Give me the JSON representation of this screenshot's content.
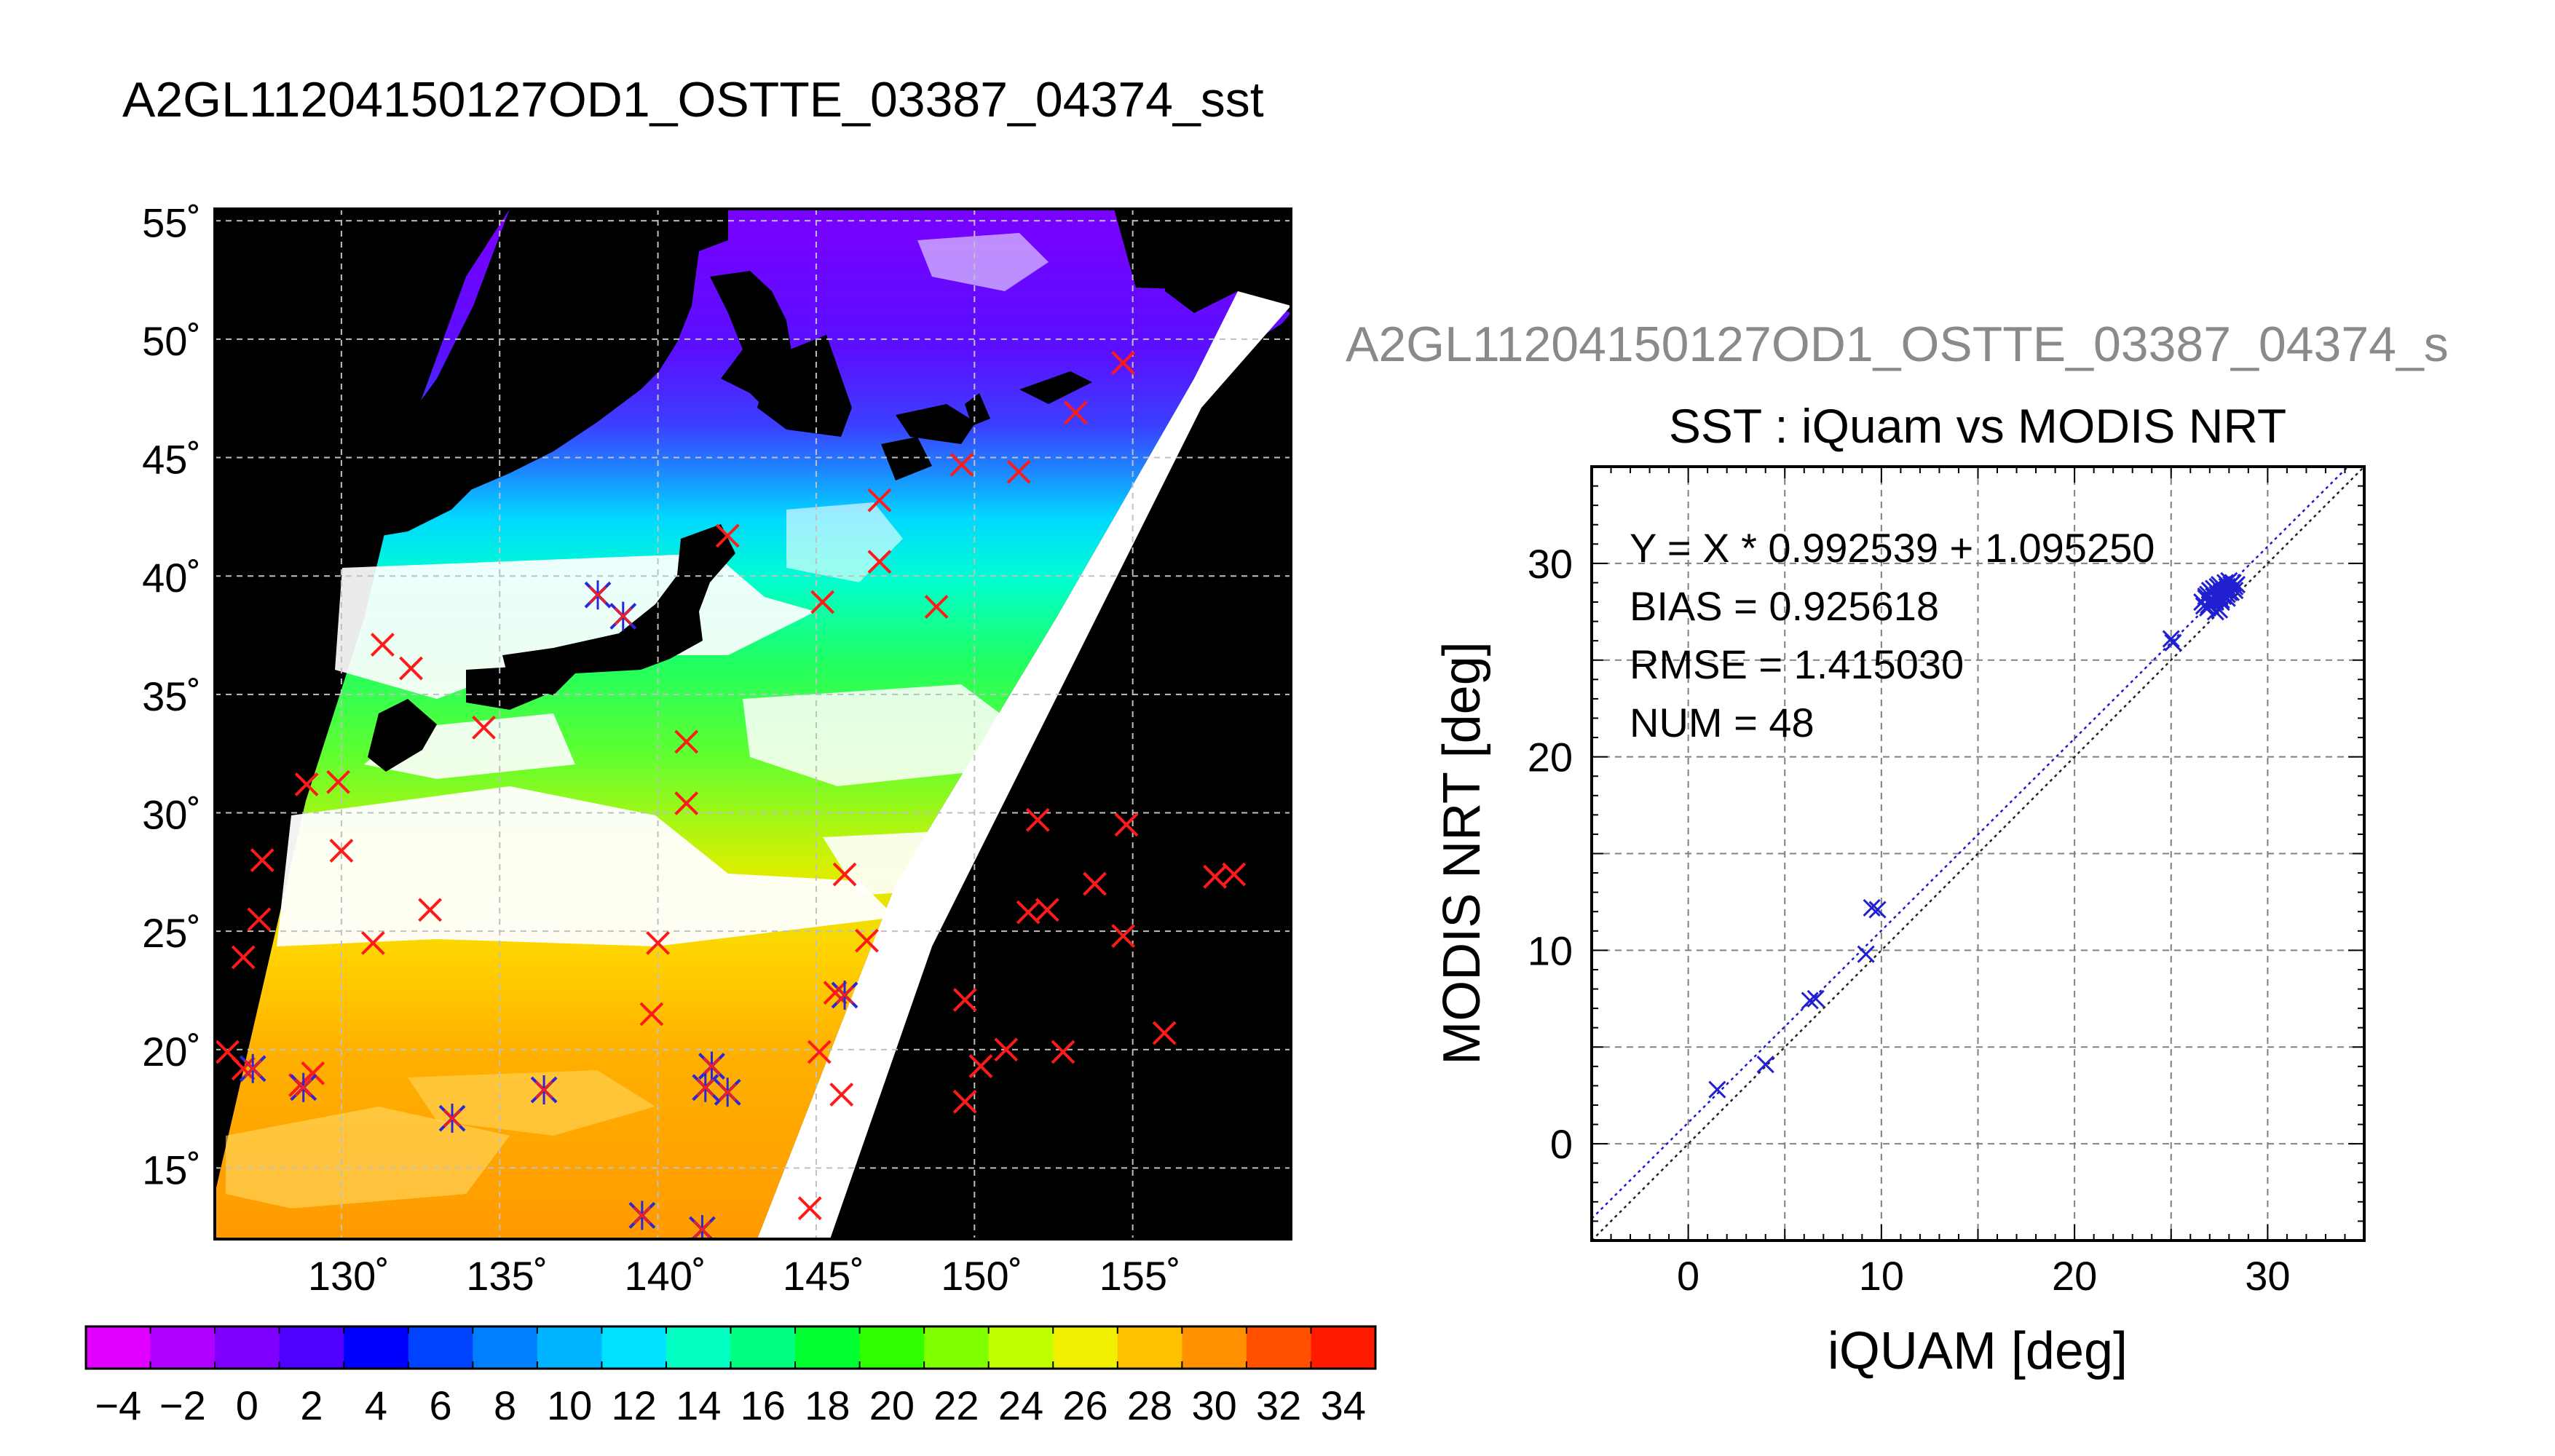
{
  "page_title": "A2GL11204150127OD1_OSTTE_03387_04374_sst",
  "scatter_title_gray": "A2GL11204150127OD1_OSTTE_03387_04374_s",
  "map": {
    "lat_labels": [
      "55˚",
      "50˚",
      "45˚",
      "40˚",
      "35˚",
      "30˚",
      "25˚",
      "20˚",
      "15˚"
    ],
    "lat_values": [
      55,
      50,
      45,
      40,
      35,
      30,
      25,
      20,
      15
    ],
    "lon_labels": [
      "130˚",
      "135˚",
      "140˚",
      "145˚",
      "150˚",
      "155˚"
    ],
    "lon_values": [
      130,
      135,
      140,
      145,
      150,
      155
    ],
    "lon_range": [
      126,
      160
    ],
    "lat_range": [
      12,
      55.5
    ],
    "colors": {
      "background": "#000000",
      "no_data": "#ffffff",
      "grid": "#c0c0c0",
      "match_red": "#ff1a1a",
      "match_blue": "#2828d8"
    },
    "red_matchups": [
      [
        157.6,
        27.3
      ],
      [
        158.2,
        27.4
      ],
      [
        156.0,
        20.7
      ],
      [
        154.8,
        29.5
      ],
      [
        154.7,
        24.8
      ],
      [
        153.8,
        27.0
      ],
      [
        152.8,
        19.9
      ],
      [
        152.3,
        25.9
      ],
      [
        151.7,
        25.8
      ],
      [
        152.0,
        29.7
      ],
      [
        151.0,
        20.0
      ],
      [
        150.2,
        19.3
      ],
      [
        149.7,
        22.1
      ],
      [
        149.7,
        17.8
      ],
      [
        148.8,
        38.7
      ],
      [
        147.0,
        40.6
      ],
      [
        147.0,
        43.2
      ],
      [
        149.6,
        44.7
      ],
      [
        151.4,
        44.4
      ],
      [
        153.2,
        46.9
      ],
      [
        154.7,
        49.0
      ],
      [
        146.6,
        24.6
      ],
      [
        145.9,
        27.4
      ],
      [
        145.8,
        18.1
      ],
      [
        145.6,
        22.4
      ],
      [
        145.1,
        19.9
      ],
      [
        144.8,
        13.3
      ],
      [
        145.2,
        38.9
      ],
      [
        142.2,
        41.7
      ],
      [
        140.9,
        33.0
      ],
      [
        140.9,
        30.4
      ],
      [
        140.0,
        24.5
      ],
      [
        139.8,
        21.5
      ],
      [
        134.5,
        33.6
      ],
      [
        132.8,
        25.9
      ],
      [
        132.2,
        36.1
      ],
      [
        131.3,
        37.1
      ],
      [
        131.0,
        24.5
      ],
      [
        130.0,
        28.4
      ],
      [
        129.9,
        31.3
      ],
      [
        128.9,
        31.2
      ],
      [
        129.1,
        19.0
      ],
      [
        127.5,
        28.0
      ],
      [
        127.4,
        25.5
      ],
      [
        126.9,
        23.9
      ],
      [
        126.4,
        19.9
      ],
      [
        126.9,
        19.2
      ],
      [
        128.7,
        18.5
      ]
    ],
    "blue_matchups": [
      [
        138.1,
        39.2
      ],
      [
        138.9,
        38.3
      ],
      [
        141.7,
        19.3
      ],
      [
        141.5,
        18.4
      ],
      [
        142.2,
        18.2
      ],
      [
        136.4,
        18.3
      ],
      [
        133.5,
        17.1
      ],
      [
        139.5,
        13.0
      ],
      [
        141.4,
        12.4
      ],
      [
        145.9,
        22.3
      ],
      [
        128.8,
        18.4
      ],
      [
        127.2,
        19.2
      ]
    ]
  },
  "colorbar": {
    "tick_labels": [
      "−4",
      "−2",
      "0",
      "2",
      "4",
      "6",
      "8",
      "10",
      "12",
      "14",
      "16",
      "18",
      "20",
      "22",
      "24",
      "26",
      "28",
      "30",
      "32",
      "34"
    ],
    "range": [
      -4.0,
      36.0
    ],
    "colors": [
      "#e000ff",
      "#b000ff",
      "#8000ff",
      "#5000ff",
      "#0000ff",
      "#0044ff",
      "#0080ff",
      "#00b4ff",
      "#00e0ff",
      "#00ffc0",
      "#00ff80",
      "#00ff30",
      "#30ff00",
      "#80ff00",
      "#c0ff00",
      "#f0f000",
      "#ffc000",
      "#ff9000",
      "#ff5000",
      "#ff1a00"
    ]
  },
  "stats": {
    "equation": "Y = X * 0.992539 + 1.095250",
    "bias": "BIAS = 0.925618",
    "rmse": "RMSE = 1.415030",
    "num": "NUM = 48"
  },
  "chart_data": {
    "type": "scatter",
    "title": "SST : iQuam vs MODIS NRT",
    "xlabel": "iQUAM [deg]",
    "ylabel": "MODIS NRT [deg]",
    "xlim": [
      -5,
      35
    ],
    "ylim": [
      -5,
      35
    ],
    "xticks": [
      0,
      10,
      20,
      30
    ],
    "yticks": [
      0,
      10,
      20,
      30
    ],
    "grid": true,
    "fit": {
      "slope": 0.992539,
      "intercept": 1.09525
    },
    "series": [
      {
        "color": "#2020d0",
        "x": [
          1.5,
          4.0,
          6.3,
          6.6,
          9.2,
          9.5,
          9.8,
          25.0,
          25.1,
          26.6,
          26.7,
          26.8,
          26.9,
          27.0,
          27.0,
          27.1,
          27.2,
          27.2,
          27.3,
          27.4,
          27.4,
          27.5,
          27.5,
          27.6,
          27.6,
          27.7,
          27.7,
          27.8,
          27.8,
          27.9,
          27.9,
          28.0,
          28.0,
          28.1,
          28.1,
          28.2,
          28.2,
          28.3,
          28.4,
          26.9,
          27.3,
          27.6,
          28.0,
          27.1,
          27.5,
          26.8,
          27.9,
          28.3
        ],
        "y": [
          2.8,
          4.1,
          7.4,
          7.5,
          9.8,
          12.2,
          12.1,
          26.1,
          25.9,
          28.0,
          27.8,
          28.2,
          28.4,
          27.9,
          28.6,
          28.1,
          28.3,
          28.7,
          27.5,
          28.4,
          28.8,
          28.2,
          28.9,
          28.5,
          28.0,
          28.7,
          28.3,
          28.6,
          29.0,
          28.4,
          28.8,
          28.6,
          29.1,
          28.5,
          28.9,
          28.7,
          29.0,
          28.8,
          28.9,
          27.7,
          28.0,
          28.1,
          28.5,
          28.5,
          27.6,
          28.3,
          28.2,
          28.6
        ]
      }
    ]
  }
}
